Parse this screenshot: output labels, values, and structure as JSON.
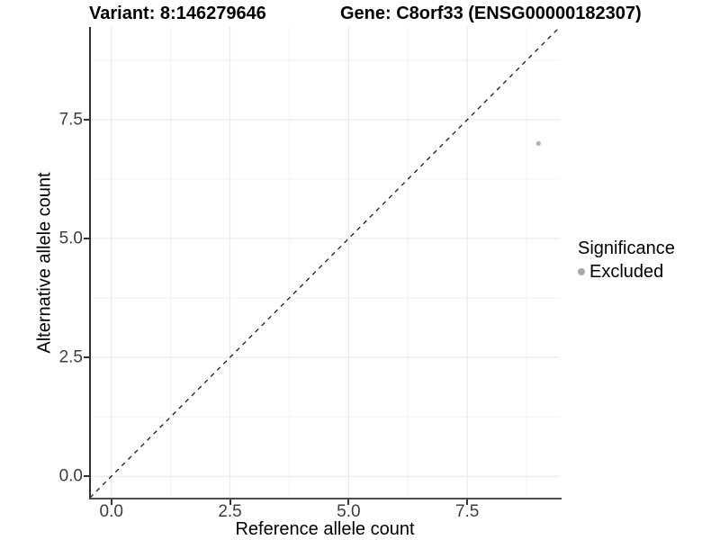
{
  "chart_data": {
    "type": "scatter",
    "titles": {
      "left": "Variant: 8:146279646",
      "right": "Gene: C8orf33 (ENSG00000182307)"
    },
    "xlabel": "Reference allele count",
    "ylabel": "Alternative allele count",
    "xlim": [
      -0.45,
      9.45
    ],
    "ylim": [
      -0.45,
      9.45
    ],
    "x_major_ticks": [
      0,
      2.5,
      5,
      7.5
    ],
    "y_major_ticks": [
      0,
      2.5,
      5,
      7.5
    ],
    "x_minor_ticks": [
      1.25,
      3.75,
      6.25,
      8.75
    ],
    "y_minor_ticks": [
      1.25,
      3.75,
      6.25,
      8.75
    ],
    "x_tick_labels": [
      "0.0",
      "2.5",
      "5.0",
      "7.5"
    ],
    "y_tick_labels": [
      "0.0",
      "2.5",
      "5.0",
      "7.5"
    ],
    "grid": {
      "show_major": true,
      "show_minor": true
    },
    "identity_line": {
      "from": [
        -0.45,
        -0.45
      ],
      "to": [
        9.45,
        9.45
      ],
      "style": "dashed",
      "color": "#1a1a1a"
    },
    "series": [
      {
        "name": "Excluded",
        "color": "#b4b4b4",
        "point_radius": 2.6,
        "points": [
          {
            "x": 9,
            "y": 7
          }
        ]
      }
    ],
    "legend": {
      "title": "Significance",
      "position": "right",
      "items": [
        {
          "label": "Excluded",
          "color": "#a9a9a9"
        }
      ]
    },
    "colors": {
      "background": "#ffffff",
      "grid_major": "#e9e9e9",
      "grid_minor": "#f4f4f4",
      "axis_line": "#3a3a3a",
      "tick_label": "#3d3d3d",
      "title": "#000000"
    }
  }
}
